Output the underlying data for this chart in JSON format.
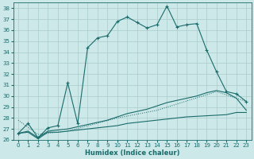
{
  "xlabel": "Humidex (Indice chaleur)",
  "bg_color": "#cce8e8",
  "line_color": "#1a6b6b",
  "grid_color": "#aacccc",
  "xlim": [
    -0.5,
    23.5
  ],
  "ylim": [
    26,
    38.5
  ],
  "yticks": [
    26,
    27,
    28,
    29,
    30,
    31,
    32,
    33,
    34,
    35,
    36,
    37,
    38
  ],
  "xticks": [
    0,
    1,
    2,
    3,
    4,
    5,
    6,
    7,
    8,
    9,
    10,
    11,
    12,
    13,
    14,
    15,
    16,
    17,
    18,
    19,
    20,
    21,
    22,
    23
  ],
  "line_main_x": [
    0,
    1,
    2,
    3,
    4,
    5,
    6,
    7,
    8,
    9,
    10,
    11,
    12,
    13,
    14,
    15,
    16,
    17,
    18,
    19,
    20,
    21,
    22,
    23
  ],
  "line_main_y": [
    26.6,
    27.5,
    26.2,
    27.1,
    27.3,
    31.2,
    27.5,
    34.4,
    35.3,
    35.5,
    36.8,
    37.2,
    36.7,
    36.2,
    36.5,
    38.2,
    36.3,
    36.5,
    36.6,
    34.2,
    32.2,
    30.4,
    30.2,
    29.5
  ],
  "line_dotted_x": [
    0,
    2,
    5,
    10,
    14,
    20,
    23
  ],
  "line_dotted_y": [
    27.8,
    26.5,
    26.8,
    28.0,
    28.7,
    30.4,
    29.5
  ],
  "line_curve1_x": [
    0,
    1,
    2,
    3,
    4,
    5,
    6,
    7,
    8,
    9,
    10,
    11,
    12,
    13,
    14,
    15,
    16,
    17,
    18,
    19,
    20,
    21,
    22,
    23
  ],
  "line_curve1_y": [
    26.6,
    26.8,
    26.2,
    26.8,
    26.9,
    27.0,
    27.2,
    27.4,
    27.6,
    27.8,
    28.1,
    28.4,
    28.6,
    28.8,
    29.1,
    29.4,
    29.6,
    29.8,
    30.0,
    30.3,
    30.5,
    30.3,
    29.8,
    28.7
  ],
  "line_curve2_x": [
    0,
    1,
    2,
    3,
    4,
    5,
    6,
    7,
    8,
    9,
    10,
    11,
    12,
    13,
    14,
    15,
    16,
    17,
    18,
    19,
    20,
    21,
    22,
    23
  ],
  "line_curve2_y": [
    26.6,
    26.7,
    26.1,
    26.7,
    26.7,
    26.8,
    26.9,
    27.0,
    27.1,
    27.2,
    27.3,
    27.5,
    27.6,
    27.7,
    27.8,
    27.9,
    28.0,
    28.1,
    28.15,
    28.2,
    28.25,
    28.3,
    28.5,
    28.5
  ]
}
